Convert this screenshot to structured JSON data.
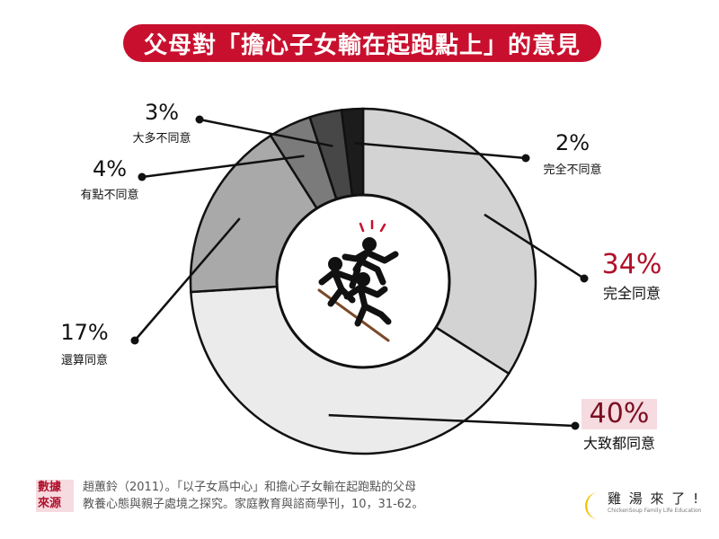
{
  "title": "父母對「擔心子女輸在起跑點上」的意見",
  "chart_data": {
    "type": "pie",
    "style": "donut",
    "title": "父母對「擔心子女輸在起跑點上」的意見",
    "slices": [
      {
        "label": "完全同意",
        "value": 34,
        "display": "34%",
        "color": "#d3d3d3",
        "label_color": "#b0102a",
        "highlight": false
      },
      {
        "label": "大致都同意",
        "value": 40,
        "display": "40%",
        "color": "#ebebeb",
        "label_color": "#7a0f22",
        "highlight": true
      },
      {
        "label": "還算同意",
        "value": 17,
        "display": "17%",
        "color": "#a9a9a9",
        "label_color": "#111111",
        "highlight": false
      },
      {
        "label": "有點不同意",
        "value": 4,
        "display": "4%",
        "color": "#7b7b7b",
        "label_color": "#111111",
        "highlight": false
      },
      {
        "label": "大多不同意",
        "value": 3,
        "display": "3%",
        "color": "#474747",
        "label_color": "#111111",
        "highlight": false
      },
      {
        "label": "完全不同意",
        "value": 2,
        "display": "2%",
        "color": "#1c1c1c",
        "label_color": "#111111",
        "highlight": false
      }
    ]
  },
  "center_icon": "running-children-icon",
  "source": {
    "tag_line1": "數據",
    "tag_line2": "來源",
    "line1": "趙蕙鈴（2011）。「以子女爲中心」和擔心子女輸在起跑點的父母",
    "line2": "教養心態與親子處境之探究。家庭教育與諮商學刊，10，31-62。"
  },
  "logo": {
    "name": "雞 湯 來 了 !",
    "subtitle": "ChickenSoup Family Life Education",
    "accent": "#f2c200"
  },
  "colors": {
    "brand_red": "#c8102e"
  }
}
